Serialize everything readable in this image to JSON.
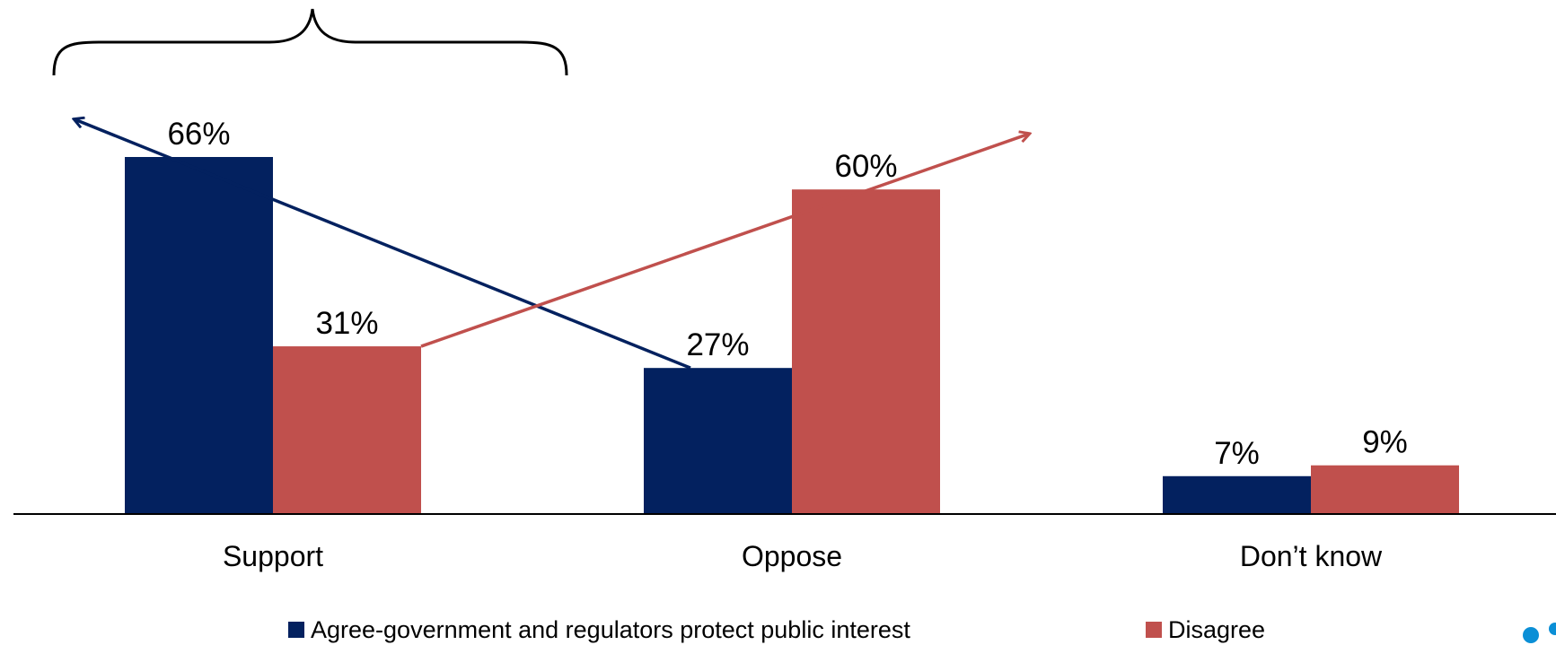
{
  "chart_data": {
    "type": "bar",
    "categories": [
      "Support",
      "Oppose",
      "Don’t know"
    ],
    "series": [
      {
        "name": "Agree-government and regulators protect public interest",
        "values": [
          66,
          27,
          7
        ],
        "labels": [
          "66%",
          "27%",
          "7%"
        ],
        "color": "#03215f"
      },
      {
        "name": "Disagree",
        "values": [
          31,
          60,
          9
        ],
        "labels": [
          "31%",
          "60%",
          "9%"
        ],
        "color": "#c0504d"
      }
    ],
    "unit": "%",
    "ylim": [
      0,
      66
    ],
    "grid": false,
    "legend_position": "bottom",
    "annotations": [
      "brace-over-support",
      "trend-arrow-series-1",
      "trend-arrow-series-2"
    ]
  },
  "colors": {
    "accent_dot": "#0b8fd6"
  }
}
